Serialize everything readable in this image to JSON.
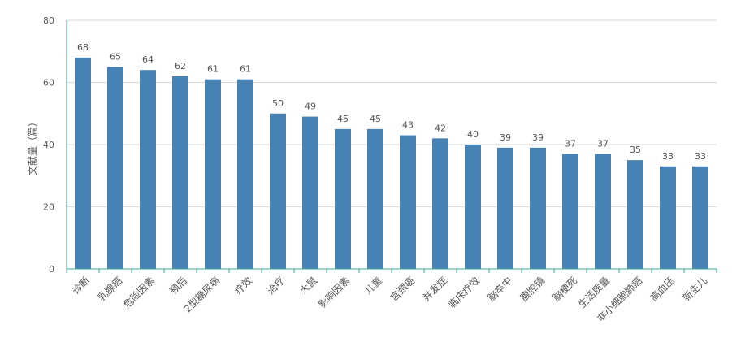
{
  "chart_data": {
    "type": "bar",
    "title": "",
    "xlabel": "",
    "ylabel": "文献量（篇）",
    "ylim": [
      0,
      80
    ],
    "yticks": [
      0,
      20,
      40,
      60,
      80
    ],
    "grid": true,
    "colors": {
      "bar": "#4682b4",
      "axis": "#3aa89a",
      "grid": "#d9d9d9"
    },
    "categories": [
      "诊断",
      "乳腺癌",
      "危险因素",
      "预后",
      "2型糖尿病",
      "疗效",
      "治疗",
      "大鼠",
      "影响因素",
      "儿童",
      "宫颈癌",
      "并发症",
      "临床疗效",
      "脑卒中",
      "腹腔镜",
      "脑梗死",
      "生活质量",
      "非小细胞肺癌",
      "高血压",
      "新生儿"
    ],
    "values": [
      68,
      65,
      64,
      62,
      61,
      61,
      50,
      49,
      45,
      45,
      43,
      42,
      40,
      39,
      39,
      37,
      37,
      35,
      33,
      33
    ]
  }
}
